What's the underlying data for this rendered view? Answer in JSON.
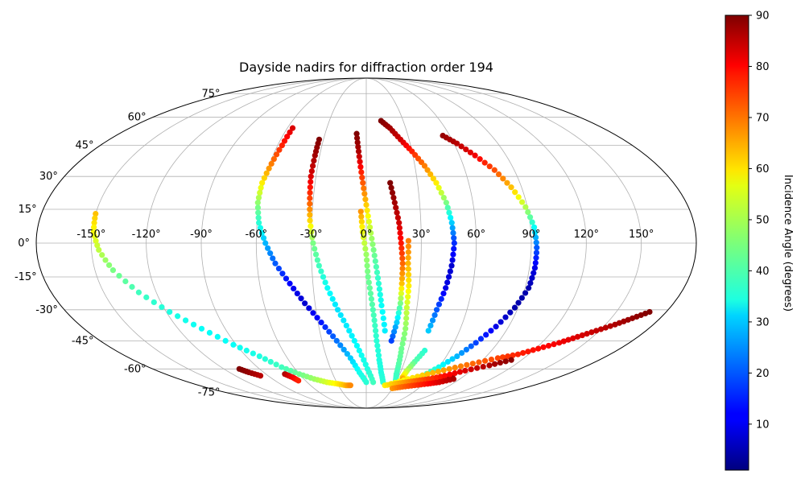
{
  "chart_data": {
    "type": "scatter",
    "projection": "mollweide",
    "title": "Dayside nadirs for diffraction order 194",
    "x_ticks": [
      "-150°",
      "-120°",
      "-90°",
      "-60°",
      "-30°",
      "0°",
      "30°",
      "60°",
      "90°",
      "120°",
      "150°"
    ],
    "x_tick_values": [
      -150,
      -120,
      -90,
      -60,
      -30,
      0,
      30,
      60,
      90,
      120,
      150
    ],
    "y_ticks": [
      "-75°",
      "-60°",
      "-45°",
      "-30°",
      "-15°",
      "0°",
      "15°",
      "30°",
      "45°",
      "60°",
      "75°"
    ],
    "y_tick_values": [
      -75,
      -60,
      -45,
      -30,
      -15,
      0,
      15,
      30,
      45,
      60,
      75
    ],
    "grid": true,
    "colormap": "jet",
    "colorbar": {
      "label": "Incidence Angle (degrees)",
      "range": [
        1,
        90
      ],
      "ticks": [
        "10",
        "20",
        "30",
        "40",
        "50",
        "60",
        "70",
        "80",
        "90"
      ],
      "tick_values": [
        10,
        20,
        30,
        40,
        50,
        60,
        70,
        80,
        90
      ]
    },
    "tracks": [
      {
        "lon": [
          -150,
          -149,
          -146,
          -140,
          -130,
          -118,
          -105,
          -92,
          -80,
          -70,
          -60,
          -50,
          -40,
          -30,
          -22,
          -17
        ],
        "lat": [
          13,
          5,
          -3,
          -12,
          -22,
          -31,
          -39,
          -47,
          -53,
          -59,
          -63,
          -66,
          -68,
          -69,
          -70,
          -70
        ],
        "inc": [
          62,
          56,
          51,
          45,
          40,
          37,
          35,
          35,
          37,
          40,
          44,
          48,
          53,
          58,
          63,
          67
        ]
      },
      {
        "lon": [
          -107,
          -103,
          -97
        ],
        "lat": [
          -60,
          -62,
          -64
        ],
        "inc": [
          90,
          88,
          85
        ]
      },
      {
        "lon": [
          -73,
          -69,
          -67
        ],
        "lat": [
          -63,
          -65,
          -67
        ],
        "inc": [
          86,
          80,
          76
        ]
      },
      {
        "lon": [
          -56,
          -57,
          -59,
          -61,
          -61,
          -59,
          -55,
          -50,
          -43,
          -36,
          -28,
          -20,
          -12,
          -6,
          0
        ],
        "lat": [
          54,
          45,
          36,
          27,
          18,
          9,
          0,
          -9,
          -18,
          -27,
          -36,
          -45,
          -54,
          -62,
          -68
        ],
        "inc": [
          82,
          76,
          68,
          58,
          47,
          38,
          28,
          20,
          12,
          8,
          14,
          22,
          30,
          36,
          38
        ]
      },
      {
        "lon": [
          -33,
          -33,
          -33,
          -32,
          -31,
          -29,
          -26,
          -22,
          -17,
          -11,
          -5,
          1,
          7
        ],
        "lat": [
          48,
          40,
          30,
          20,
          10,
          0,
          -10,
          -20,
          -30,
          -40,
          -50,
          -60,
          -68
        ],
        "inc": [
          90,
          87,
          82,
          73,
          60,
          45,
          40,
          35,
          32,
          33,
          35,
          37,
          40
        ]
      },
      {
        "lon": [
          -7,
          -5,
          -3,
          -1,
          1,
          3,
          5,
          7,
          9,
          12
        ],
        "lat": [
          51,
          42,
          32,
          22,
          12,
          2,
          -8,
          -18,
          -28,
          -40
        ],
        "inc": [
          90,
          86,
          76,
          66,
          56,
          48,
          42,
          38,
          35,
          33
        ]
      },
      {
        "lon": [
          -3,
          -2,
          0,
          1,
          3,
          5,
          7,
          10,
          13,
          17
        ],
        "lat": [
          14,
          5,
          -5,
          -15,
          -25,
          -35,
          -45,
          -55,
          -62,
          -68
        ],
        "inc": [
          66,
          55,
          48,
          44,
          42,
          40,
          38,
          37,
          37,
          38
        ]
      },
      {
        "lon": [
          14,
          16,
          18,
          19,
          20,
          20,
          20,
          19,
          17
        ],
        "lat": [
          27,
          18,
          9,
          0,
          -9,
          -18,
          -27,
          -36,
          -45
        ],
        "inc": [
          90,
          87,
          83,
          77,
          70,
          62,
          45,
          30,
          18
        ]
      },
      {
        "lon": [
          23,
          23,
          24,
          24,
          25,
          25,
          26,
          27,
          29,
          31
        ],
        "lat": [
          1,
          -9,
          -19,
          -29,
          -39,
          -49,
          -57,
          -63,
          -67,
          -69
        ],
        "inc": [
          68,
          63,
          58,
          52,
          47,
          44,
          42,
          40,
          39,
          38
        ]
      },
      {
        "lon": [
          12,
          18,
          24,
          30,
          36,
          41,
          45,
          47,
          48,
          47,
          45,
          42,
          40
        ],
        "lat": [
          58,
          54,
          48,
          42,
          35,
          27,
          18,
          9,
          0,
          -10,
          -20,
          -30,
          -40
        ],
        "inc": [
          90,
          87,
          83,
          76,
          68,
          58,
          45,
          30,
          16,
          8,
          10,
          20,
          30
        ]
      },
      {
        "lon": [
          42,
          38,
          35,
          34,
          36,
          42,
          50,
          58,
          66,
          73,
          79
        ],
        "lat": [
          -50,
          -56,
          -61,
          -65,
          -67,
          -68,
          -68,
          -67,
          -66,
          -65,
          -64
        ],
        "inc": [
          38,
          42,
          50,
          60,
          68,
          72,
          76,
          80,
          83,
          86,
          88
        ]
      },
      {
        "lon": [
          55,
          62,
          70,
          78,
          84,
          89,
          92,
          93,
          93,
          92,
          88,
          82,
          75,
          68,
          60,
          52,
          44
        ],
        "lat": [
          50,
          46,
          40,
          33,
          25,
          16,
          7,
          -2,
          -11,
          -20,
          -29,
          -38,
          -46,
          -53,
          -59,
          -64,
          -67
        ],
        "inc": [
          88,
          85,
          80,
          72,
          62,
          50,
          35,
          20,
          10,
          5,
          5,
          10,
          18,
          28,
          36,
          42,
          48
        ]
      },
      {
        "lon": [
          26,
          40,
          55,
          70,
          85,
          100,
          112,
          122,
          132,
          140,
          148,
          156,
          163,
          170
        ],
        "lat": [
          -69,
          -66,
          -63,
          -60,
          -57,
          -54,
          -52,
          -49,
          -46,
          -43,
          -40,
          -37,
          -34,
          -31
        ],
        "inc": [
          55,
          58,
          62,
          66,
          70,
          73,
          76,
          78,
          80,
          82,
          84,
          86,
          88,
          90
        ]
      },
      {
        "lon": [
          20,
          30,
          40,
          50,
          60,
          72,
          85,
          100,
          112
        ],
        "lat": [
          -70,
          -69,
          -68,
          -67,
          -66,
          -64,
          -61,
          -58,
          -55
        ],
        "inc": [
          58,
          62,
          66,
          70,
          74,
          78,
          82,
          86,
          89
        ]
      },
      {
        "lon": [
          30,
          40,
          52,
          64,
          74,
          84
        ],
        "lat": [
          -72,
          -71,
          -70,
          -69,
          -68,
          -66
        ],
        "inc": [
          66,
          70,
          74,
          78,
          82,
          86
        ]
      }
    ]
  }
}
